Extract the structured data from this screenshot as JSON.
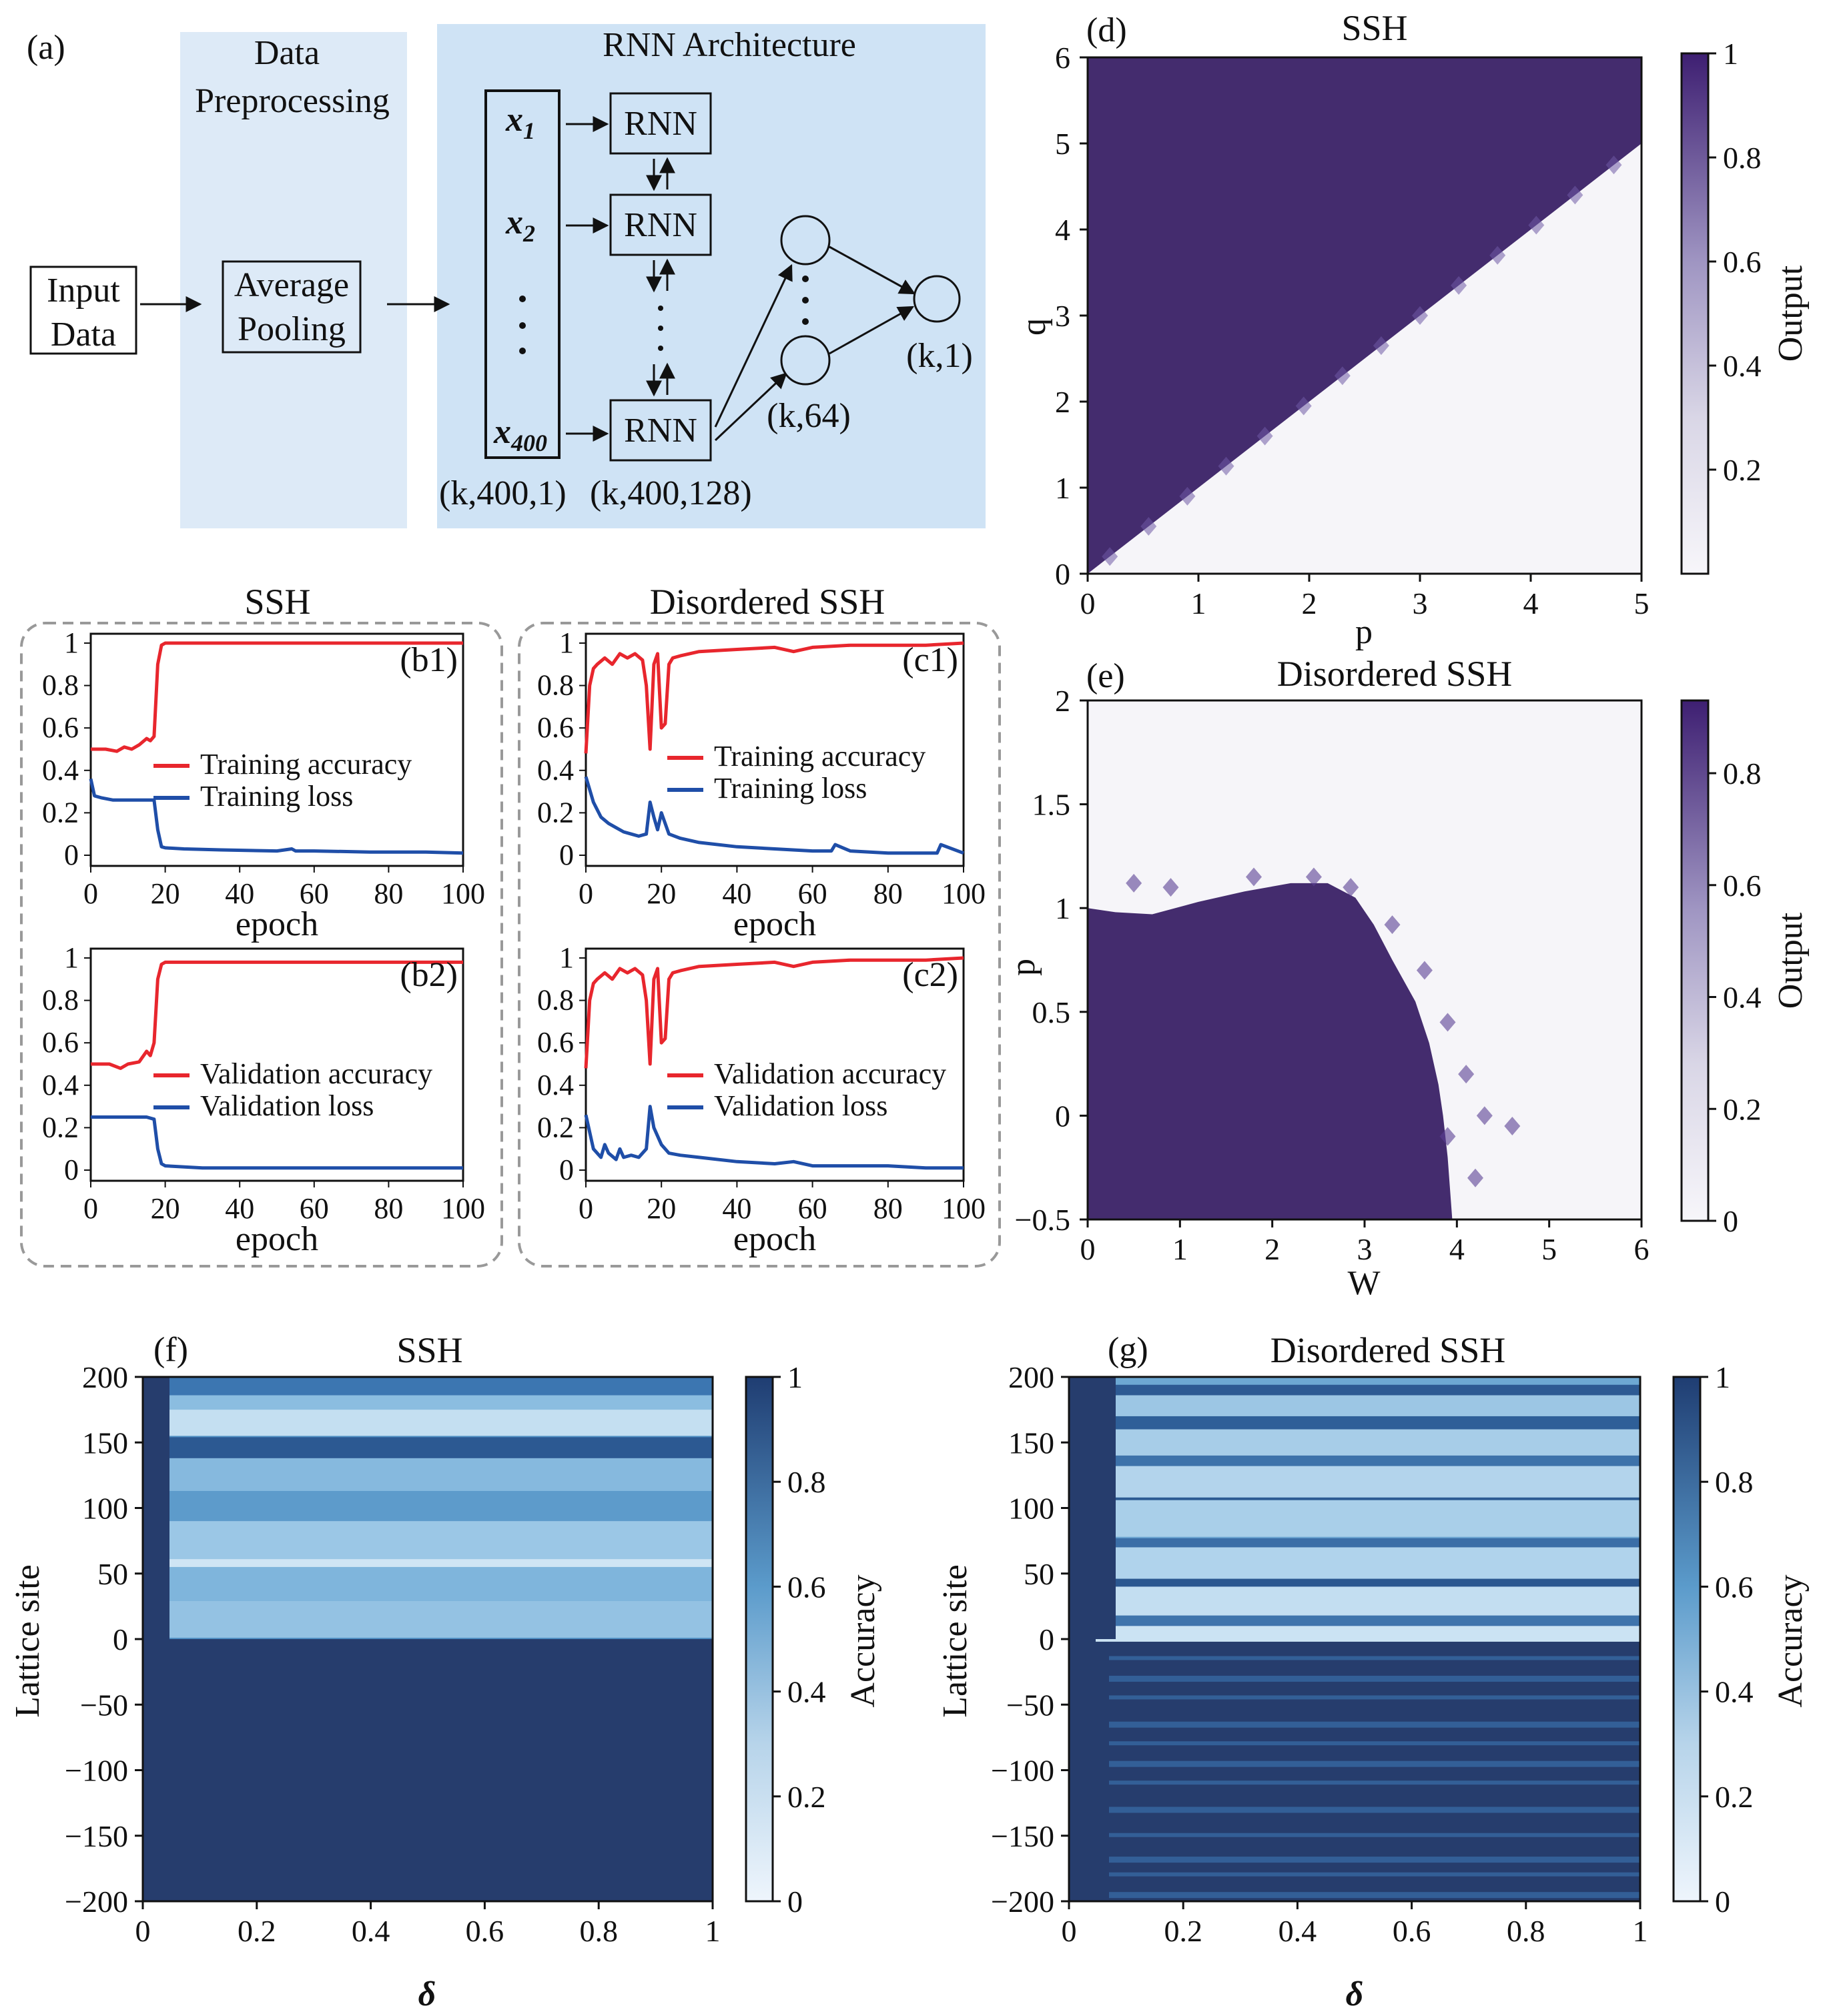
{
  "figure": {
    "panel_a": {
      "label": "(a)",
      "section_preprocess": "Data Preprocessing",
      "section_preprocess_l1": "Data",
      "section_preprocess_l2": "Preprocessing",
      "section_rnn": "RNN Architecture",
      "input_box_l1": "Input",
      "input_box_l2": "Data",
      "pool_box_l1": "Average",
      "pool_box_l2": "Pooling",
      "rnn_cell": "RNN",
      "x1_base": "x",
      "x1_sub": "1",
      "x2_base": "x",
      "x2_sub": "2",
      "x400_base": "x",
      "x400_sub": "400",
      "shape_input": "(k,400,1)",
      "shape_rnn": "(k,400,128)",
      "shape_dense": "(k,64)",
      "shape_out": "(k,1)"
    },
    "group_ssh_title": "SSH",
    "group_dis_title": "Disordered SSH"
  },
  "colors": {
    "train_acc": "#e8262d",
    "train_loss": "#1f4ea8",
    "panel_bg_light": "#ddeaf7",
    "panel_bg": "#cfe3f5",
    "phase_dark": "#442c6e",
    "phase_light": "#f6f5f9",
    "accuracy_dark": "#263d6d",
    "accuracy_light": "#e9f2fa"
  },
  "chart_data": [
    {
      "id": "b1",
      "type": "line",
      "label": "(b1)",
      "xlabel": "epoch",
      "ylabel": "",
      "xlim": [
        0,
        100
      ],
      "ylim": [
        0,
        1
      ],
      "xticks": [
        0,
        20,
        40,
        60,
        80,
        100
      ],
      "yticks": [
        "0",
        "0.2",
        "0.4",
        "0.6",
        "0.8",
        "1"
      ],
      "series": [
        {
          "name": "Training accuracy",
          "x": [
            0,
            4,
            7,
            9,
            11,
            13,
            15,
            16,
            17,
            18,
            19,
            20,
            25,
            35,
            50,
            60,
            75,
            90,
            100
          ],
          "values": [
            0.5,
            0.5,
            0.49,
            0.51,
            0.5,
            0.52,
            0.55,
            0.54,
            0.56,
            0.9,
            0.99,
            1.0,
            1.0,
            1.0,
            1.0,
            1.0,
            1.0,
            1.0,
            1.0
          ]
        },
        {
          "name": "Training loss",
          "x": [
            0,
            1,
            3,
            6,
            10,
            14,
            17,
            18,
            19,
            20,
            25,
            35,
            50,
            54,
            55,
            60,
            75,
            90,
            100
          ],
          "values": [
            0.36,
            0.28,
            0.27,
            0.26,
            0.26,
            0.26,
            0.26,
            0.12,
            0.04,
            0.035,
            0.03,
            0.025,
            0.02,
            0.03,
            0.02,
            0.02,
            0.015,
            0.015,
            0.01
          ]
        }
      ]
    },
    {
      "id": "b2",
      "type": "line",
      "label": "(b2)",
      "xlabel": "epoch",
      "ylabel": "",
      "xlim": [
        0,
        100
      ],
      "ylim": [
        0,
        1
      ],
      "xticks": [
        0,
        20,
        40,
        60,
        80,
        100
      ],
      "yticks": [
        "0",
        "0.2",
        "0.4",
        "0.6",
        "0.8",
        "1"
      ],
      "series": [
        {
          "name": "Validation accuracy",
          "x": [
            0,
            5,
            8,
            10,
            13,
            15,
            16,
            17,
            18,
            19,
            20,
            30,
            50,
            70,
            100
          ],
          "values": [
            0.5,
            0.5,
            0.48,
            0.5,
            0.51,
            0.56,
            0.54,
            0.6,
            0.9,
            0.97,
            0.98,
            0.98,
            0.98,
            0.98,
            0.98
          ]
        },
        {
          "name": "Validation loss",
          "x": [
            0,
            5,
            10,
            15,
            17,
            18,
            19,
            20,
            30,
            50,
            70,
            100
          ],
          "values": [
            0.25,
            0.25,
            0.25,
            0.25,
            0.24,
            0.1,
            0.03,
            0.02,
            0.01,
            0.01,
            0.01,
            0.01
          ]
        }
      ]
    },
    {
      "id": "c1",
      "type": "line",
      "label": "(c1)",
      "xlabel": "epoch",
      "ylabel": "",
      "xlim": [
        0,
        100
      ],
      "ylim": [
        0,
        1
      ],
      "xticks": [
        0,
        20,
        40,
        60,
        80,
        100
      ],
      "yticks": [
        "0",
        "0.2",
        "0.4",
        "0.6",
        "0.8",
        "1"
      ],
      "series": [
        {
          "name": "Training accuracy",
          "x": [
            0,
            1,
            2,
            3,
            5,
            7,
            9,
            11,
            13,
            15,
            16,
            17,
            18,
            19,
            20,
            21,
            22,
            23,
            25,
            30,
            40,
            50,
            55,
            60,
            70,
            80,
            90,
            100
          ],
          "values": [
            0.48,
            0.8,
            0.88,
            0.9,
            0.93,
            0.9,
            0.95,
            0.93,
            0.95,
            0.92,
            0.8,
            0.5,
            0.9,
            0.95,
            0.6,
            0.62,
            0.9,
            0.93,
            0.94,
            0.96,
            0.97,
            0.98,
            0.96,
            0.98,
            0.99,
            0.99,
            0.99,
            1.0
          ]
        },
        {
          "name": "Training loss",
          "x": [
            0,
            2,
            4,
            6,
            8,
            10,
            12,
            14,
            16,
            17,
            18,
            19,
            20,
            22,
            25,
            30,
            40,
            50,
            60,
            65,
            66,
            70,
            80,
            90,
            93,
            94,
            100
          ],
          "values": [
            0.37,
            0.25,
            0.18,
            0.15,
            0.13,
            0.11,
            0.1,
            0.09,
            0.1,
            0.25,
            0.18,
            0.12,
            0.2,
            0.1,
            0.08,
            0.06,
            0.04,
            0.03,
            0.02,
            0.02,
            0.05,
            0.02,
            0.01,
            0.01,
            0.01,
            0.05,
            0.01
          ]
        }
      ]
    },
    {
      "id": "c2",
      "type": "line",
      "label": "(c2)",
      "xlabel": "epoch",
      "ylabel": "",
      "xlim": [
        0,
        100
      ],
      "ylim": [
        0,
        1
      ],
      "xticks": [
        0,
        20,
        40,
        60,
        80,
        100
      ],
      "yticks": [
        "0",
        "0.2",
        "0.4",
        "0.6",
        "0.8",
        "1"
      ],
      "series": [
        {
          "name": "Validation accuracy",
          "x": [
            0,
            1,
            2,
            3,
            5,
            7,
            9,
            11,
            13,
            15,
            16,
            17,
            18,
            19,
            20,
            21,
            22,
            23,
            25,
            30,
            40,
            50,
            55,
            60,
            70,
            80,
            90,
            100
          ],
          "values": [
            0.48,
            0.8,
            0.88,
            0.9,
            0.93,
            0.9,
            0.95,
            0.93,
            0.95,
            0.92,
            0.8,
            0.5,
            0.9,
            0.95,
            0.6,
            0.62,
            0.9,
            0.93,
            0.94,
            0.96,
            0.97,
            0.98,
            0.96,
            0.98,
            0.99,
            0.99,
            0.99,
            1.0
          ]
        },
        {
          "name": "Validation loss",
          "x": [
            0,
            2,
            4,
            5,
            6,
            8,
            9,
            10,
            12,
            14,
            16,
            17,
            18,
            20,
            22,
            25,
            30,
            40,
            50,
            55,
            60,
            70,
            80,
            90,
            100
          ],
          "values": [
            0.26,
            0.1,
            0.06,
            0.12,
            0.08,
            0.05,
            0.1,
            0.06,
            0.07,
            0.06,
            0.1,
            0.3,
            0.2,
            0.12,
            0.08,
            0.07,
            0.06,
            0.04,
            0.03,
            0.04,
            0.02,
            0.02,
            0.02,
            0.01,
            0.01
          ]
        }
      ]
    },
    {
      "id": "d",
      "type": "heatmap",
      "label": "(d)",
      "title": "SSH",
      "xlabel": "p",
      "ylabel": "q",
      "colorbar_label": "Output",
      "xlim": [
        0,
        5
      ],
      "ylim": [
        0,
        6
      ],
      "xticks": [
        0,
        1,
        2,
        3,
        4,
        5
      ],
      "yticks": [
        0,
        1,
        2,
        3,
        4,
        5,
        6
      ],
      "colorbar_ticks": [
        "0.2",
        "0.4",
        "0.6",
        "0.8",
        "1"
      ],
      "colorbar_range": [
        0,
        1
      ],
      "boundary": "q = p (output 1 above, ~0 below)"
    },
    {
      "id": "e",
      "type": "heatmap",
      "label": "(e)",
      "title": "Disordered SSH",
      "xlabel": "W",
      "ylabel": "p",
      "colorbar_label": "Output",
      "xlim": [
        0,
        6
      ],
      "ylim": [
        -0.5,
        2
      ],
      "xticks": [
        "0",
        "1",
        "2",
        "3",
        "4",
        "5",
        "6"
      ],
      "yticks": [
        "−0.5",
        "0",
        "0.5",
        "1",
        "1.5",
        "2"
      ],
      "colorbar_ticks": [
        "0",
        "0.2",
        "0.4",
        "0.6",
        "0.8"
      ],
      "colorbar_range": [
        0,
        0.93
      ],
      "boundary": "topological region bounded by p≈1 at W=0, peaking p≈1.1 near W≈2.4, closing at W≈4 for p=-0.5"
    },
    {
      "id": "f",
      "type": "heatmap",
      "label": "(f)",
      "title": "SSH",
      "xlabel": "δ",
      "ylabel": "Lattice site",
      "colorbar_label": "Accuracy",
      "xlim": [
        0,
        1
      ],
      "ylim": [
        -200,
        200
      ],
      "xticks": [
        "0",
        "0.2",
        "0.4",
        "0.6",
        "0.8",
        "1"
      ],
      "yticks": [
        "−200",
        "−150",
        "−100",
        "−50",
        "0",
        "50",
        "100",
        "150",
        "200"
      ],
      "colorbar_ticks": [
        "0",
        "0.2",
        "0.4",
        "0.6",
        "0.8",
        "1"
      ],
      "colorbar_range": [
        0,
        1
      ]
    },
    {
      "id": "g",
      "type": "heatmap",
      "label": "(g)",
      "title": "Disordered SSH",
      "xlabel": "δ",
      "ylabel": "Lattice site",
      "colorbar_label": "Accuracy",
      "xlim": [
        0,
        1
      ],
      "ylim": [
        -200,
        200
      ],
      "xticks": [
        "0",
        "0.2",
        "0.4",
        "0.6",
        "0.8",
        "1"
      ],
      "yticks": [
        "−200",
        "−150",
        "−100",
        "−50",
        "0",
        "50",
        "100",
        "150",
        "200"
      ],
      "colorbar_ticks": [
        "0",
        "0.2",
        "0.4",
        "0.6",
        "0.8",
        "1"
      ],
      "colorbar_range": [
        0,
        1
      ]
    }
  ]
}
